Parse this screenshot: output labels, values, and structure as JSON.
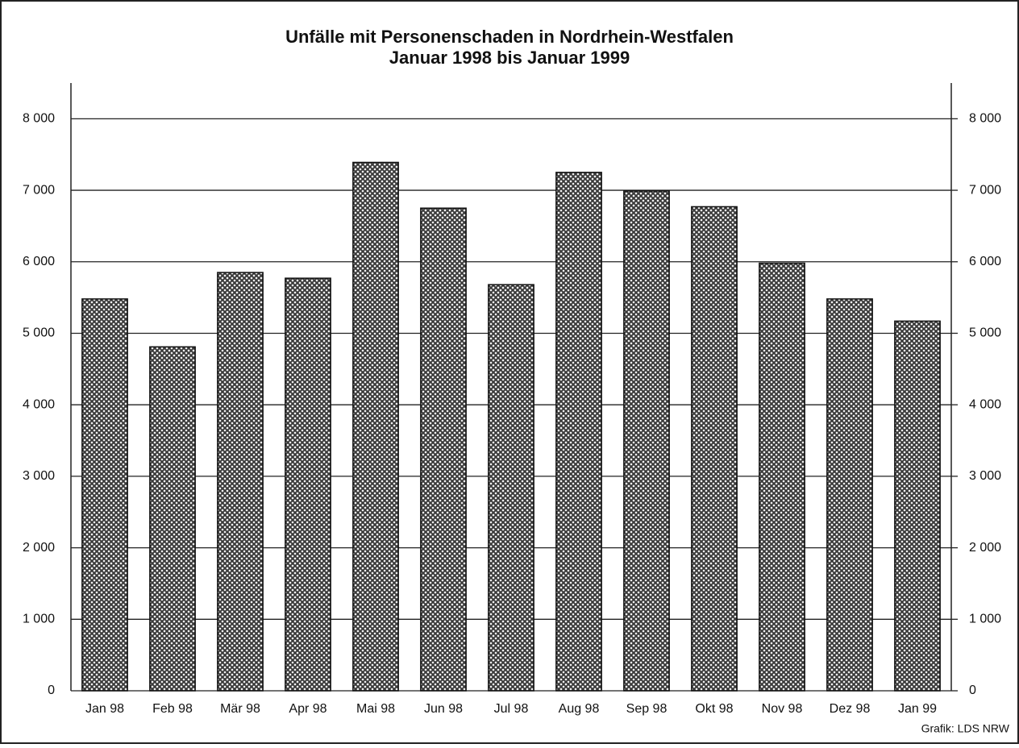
{
  "chart_data": {
    "type": "bar",
    "title": "Unfälle mit Personenschaden in Nordrhein-Westfalen",
    "subtitle": "Januar 1998 bis Januar 1999",
    "source": "Grafik: LDS NRW",
    "categories": [
      "Jan 98",
      "Feb 98",
      "Mär 98",
      "Apr 98",
      "Mai 98",
      "Jun 98",
      "Jul 98",
      "Aug 98",
      "Sep 98",
      "Okt 98",
      "Nov 98",
      "Dez 98",
      "Jan 99"
    ],
    "values": [
      5480,
      4810,
      5850,
      5770,
      7390,
      6750,
      5680,
      7250,
      6990,
      6770,
      5980,
      5480,
      5170
    ],
    "color": "#3a3a3a",
    "ylim": [
      0,
      8500
    ],
    "yticks": [
      0,
      {
        "value": 1000,
        "label": "1 000"
      },
      {
        "value": 2000,
        "label": "2 000"
      },
      {
        "value": 3000,
        "label": "3 000"
      },
      {
        "value": 4000,
        "label": "4 000"
      },
      {
        "value": 5000,
        "label": "5 000"
      },
      {
        "value": 6000,
        "label": "6 000"
      },
      {
        "value": 7000,
        "label": "7 000"
      },
      {
        "value": 8000,
        "label": "8 000"
      }
    ],
    "y2lim": [
      0,
      8500
    ],
    "y2ticks": [
      0,
      {
        "value": 1000,
        "label": "1 000"
      },
      {
        "value": 2000,
        "label": "2 000"
      },
      {
        "value": 3000,
        "label": "3 000"
      },
      {
        "value": 4000,
        "label": "4 000"
      },
      {
        "value": 5000,
        "label": "5 000"
      },
      {
        "value": 6000,
        "label": "6 000"
      },
      {
        "value": 7000,
        "label": "7 000"
      },
      {
        "value": 8000,
        "label": "8 000"
      }
    ],
    "grid": true
  }
}
